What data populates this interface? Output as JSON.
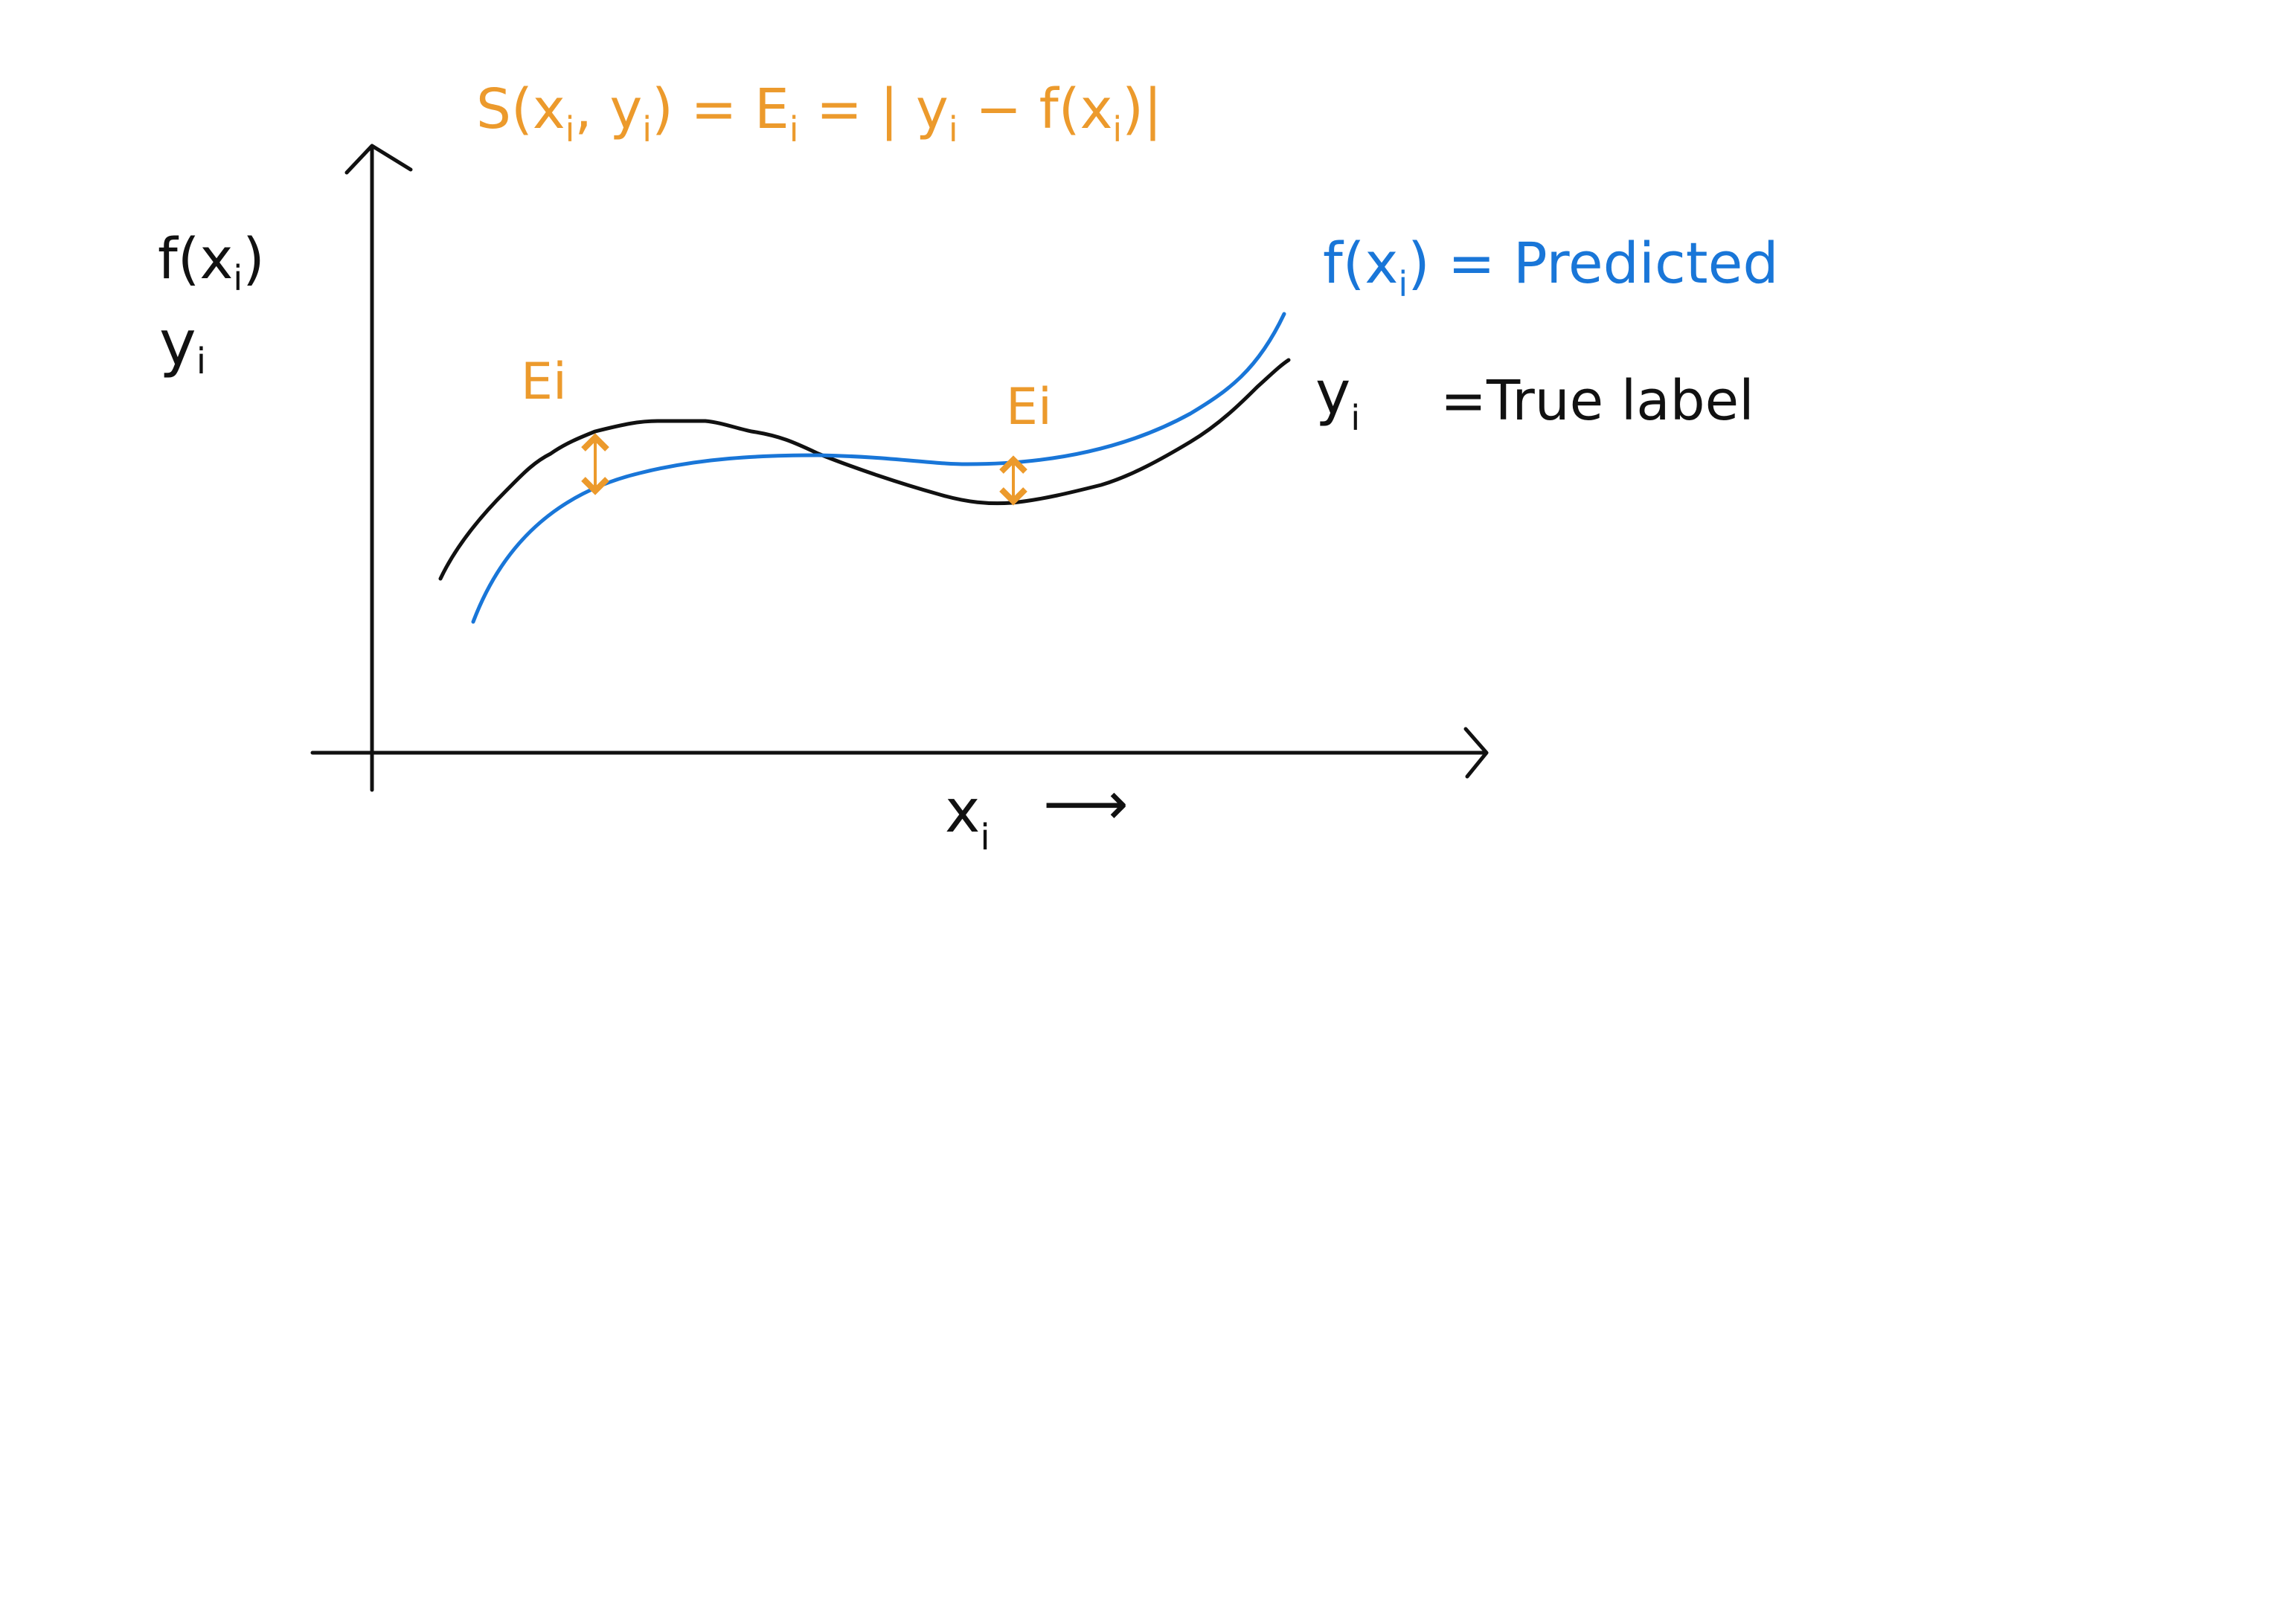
{
  "colors": {
    "error": "#ec9a2c",
    "predicted": "#1976d8",
    "true_label": "#111111",
    "background": "#ffffff"
  },
  "formula": {
    "s_part": "S(x",
    "s_sub1": "i",
    "s_comma": ", y",
    "s_sub2": "i",
    "s_close": ") = E",
    "e_sub": "i",
    "mid": " = | y",
    "y_sub": "i",
    "minus_f": " − f(x",
    "f_sub": "i",
    "end": ")|"
  },
  "axes": {
    "y_label_f": "f(x",
    "y_label_f_sub": "i",
    "y_label_f_close": ")",
    "y_label_y": "y",
    "y_label_y_sub": "i",
    "x_label": "x",
    "x_label_sub": "i",
    "x_arrow": "⟶"
  },
  "legend": {
    "predicted_prefix": "f(x",
    "predicted_sub": "i",
    "predicted_suffix": ") = Predicted",
    "true_prefix": "y",
    "true_sub": "i",
    "true_suffix": "=True label"
  },
  "annotations": {
    "error_left_label": "Ei",
    "error_right_label": "Ei"
  },
  "curves": {
    "true_label_icon": "wavy-black-curve",
    "predicted_icon": "smooth-blue-curve",
    "error_marker_icon": "double-headed-arrow"
  }
}
